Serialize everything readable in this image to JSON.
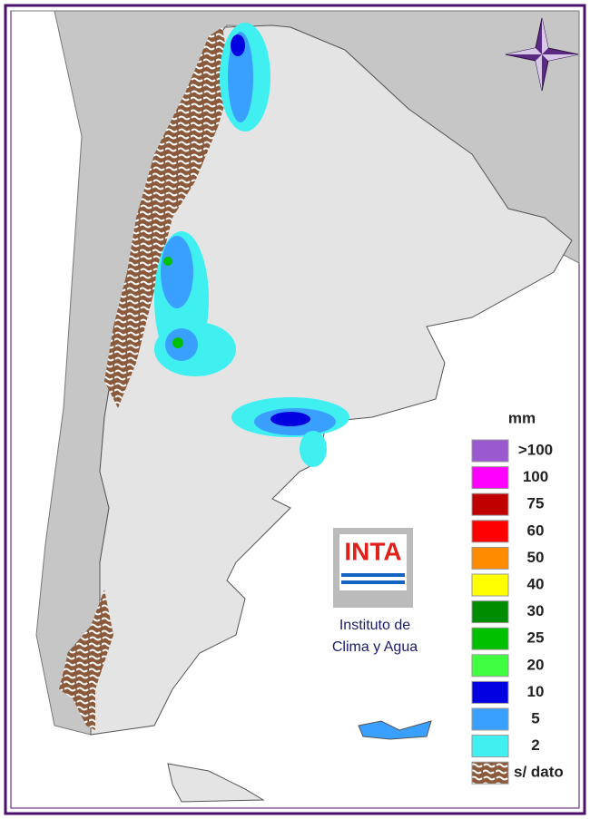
{
  "legend": {
    "unit": "mm",
    "items": [
      {
        "label": ">100",
        "color": "#9b59d0"
      },
      {
        "label": "100",
        "color": "#ff00ff"
      },
      {
        "label": "75",
        "color": "#c00000"
      },
      {
        "label": "60",
        "color": "#ff0000"
      },
      {
        "label": "50",
        "color": "#ff8c00"
      },
      {
        "label": "40",
        "color": "#ffff00"
      },
      {
        "label": "30",
        "color": "#008c00"
      },
      {
        "label": "25",
        "color": "#00c000"
      },
      {
        "label": "20",
        "color": "#40ff40"
      },
      {
        "label": "10",
        "color": "#0000e0"
      },
      {
        "label": "5",
        "color": "#3aa0ff"
      },
      {
        "label": "2",
        "color": "#40f0f0"
      },
      {
        "label": "s/ dato",
        "color": "#8b5a3c"
      }
    ]
  },
  "logo": {
    "acronym": "INTA",
    "institute": [
      "Instituto de",
      "Clima y Agua"
    ]
  }
}
